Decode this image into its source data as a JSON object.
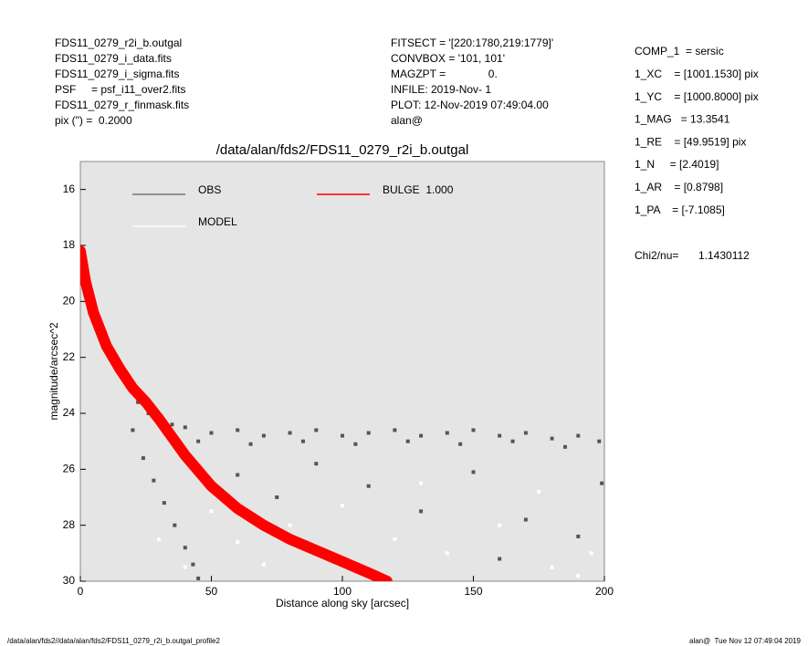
{
  "header_left": [
    "FDS11_0279_r2i_b.outgal",
    "FDS11_0279_i_data.fits",
    "FDS11_0279_i_sigma.fits",
    "PSF     = psf_i11_over2.fits",
    "FDS11_0279_r_finmask.fits",
    "pix (\") =  0.2000"
  ],
  "header_center": [
    "FITSECT = '[220:1780,219:1779]'",
    "CONVBOX = '101, 101'",
    "MAGZPT =              0.",
    "INFILE: 2019-Nov- 1",
    "PLOT: 12-Nov-2019 07:49:04.00",
    "alan@"
  ],
  "params": [
    "COMP_1  = sersic",
    "1_XC    = [1001.1530] pix",
    "1_YC    = [1000.8000] pix",
    "1_MAG   = 13.3541",
    "1_RE    = [49.9519] pix",
    "1_N     = [2.4019]",
    "1_AR    = [0.8798]",
    "1_PA    = [-7.1085]"
  ],
  "chi2_label": "Chi2/nu=",
  "chi2_value": "1.1430112",
  "footer_left": "/data/alan/fds2//data/alan/fds2/FDS11_0279_r2i_b.outgal_profile2",
  "footer_right": "alan@  Tue Nov 12 07:49:04 2019",
  "chart_data": {
    "type": "scatter",
    "title": "/data/alan/fds2/FDS11_0279_r2i_b.outgal",
    "x_label": "Distance along sky [arcsec]",
    "y_label": "magnitude/arcsec^2",
    "xlim": [
      0,
      200
    ],
    "ylim": [
      15,
      30
    ],
    "y_inverted": true,
    "xticks": [
      0,
      50,
      100,
      150,
      200
    ],
    "yticks": [
      16,
      18,
      20,
      22,
      24,
      26,
      28,
      30
    ],
    "series": [
      {
        "name": "OBS",
        "color": "#555555",
        "mode": "points",
        "x": [
          1,
          3,
          6,
          10,
          14,
          18,
          22,
          26,
          30,
          35,
          40,
          50,
          60,
          70,
          80,
          90,
          100,
          110,
          120,
          130,
          140,
          150,
          160,
          170,
          180,
          190,
          198,
          45,
          65,
          85,
          105,
          125,
          145,
          165,
          185,
          20,
          24,
          28,
          32,
          36,
          40,
          43,
          45,
          60,
          75,
          90,
          110,
          130,
          150,
          170,
          190,
          199,
          160
        ],
        "values": [
          18.5,
          19.6,
          20.6,
          21.5,
          22.2,
          23.0,
          23.6,
          24.0,
          24.3,
          24.4,
          24.5,
          24.7,
          24.6,
          24.8,
          24.7,
          24.6,
          24.8,
          24.7,
          24.6,
          24.8,
          24.7,
          24.6,
          24.8,
          24.7,
          24.9,
          24.8,
          25.0,
          25.0,
          25.1,
          25.0,
          25.1,
          25.0,
          25.1,
          25.0,
          25.2,
          24.6,
          25.6,
          26.4,
          27.2,
          28.0,
          28.8,
          29.4,
          29.9,
          26.2,
          27.0,
          25.8,
          26.6,
          27.5,
          26.1,
          27.8,
          28.4,
          26.5,
          29.2
        ]
      },
      {
        "name": "MODEL",
        "color": "#ffffff",
        "mode": "points",
        "x": [
          50,
          60,
          70,
          80,
          100,
          120,
          140,
          160,
          180,
          195,
          30,
          40,
          130,
          175,
          190
        ],
        "values": [
          27.5,
          28.6,
          29.4,
          28.0,
          27.3,
          28.5,
          29.0,
          28.0,
          29.5,
          29.0,
          28.5,
          29.5,
          26.5,
          26.8,
          29.8
        ]
      },
      {
        "name": "BULGE  1.000",
        "color": "#ff0000",
        "mode": "band",
        "x": [
          0,
          2,
          5,
          10,
          15,
          20,
          25,
          30,
          40,
          50,
          60,
          70,
          80,
          90,
          100,
          110,
          117
        ],
        "values": [
          18.2,
          19.3,
          20.4,
          21.6,
          22.4,
          23.1,
          23.6,
          24.2,
          25.5,
          26.6,
          27.4,
          28.0,
          28.5,
          28.9,
          29.3,
          29.7,
          30.0
        ]
      }
    ]
  }
}
